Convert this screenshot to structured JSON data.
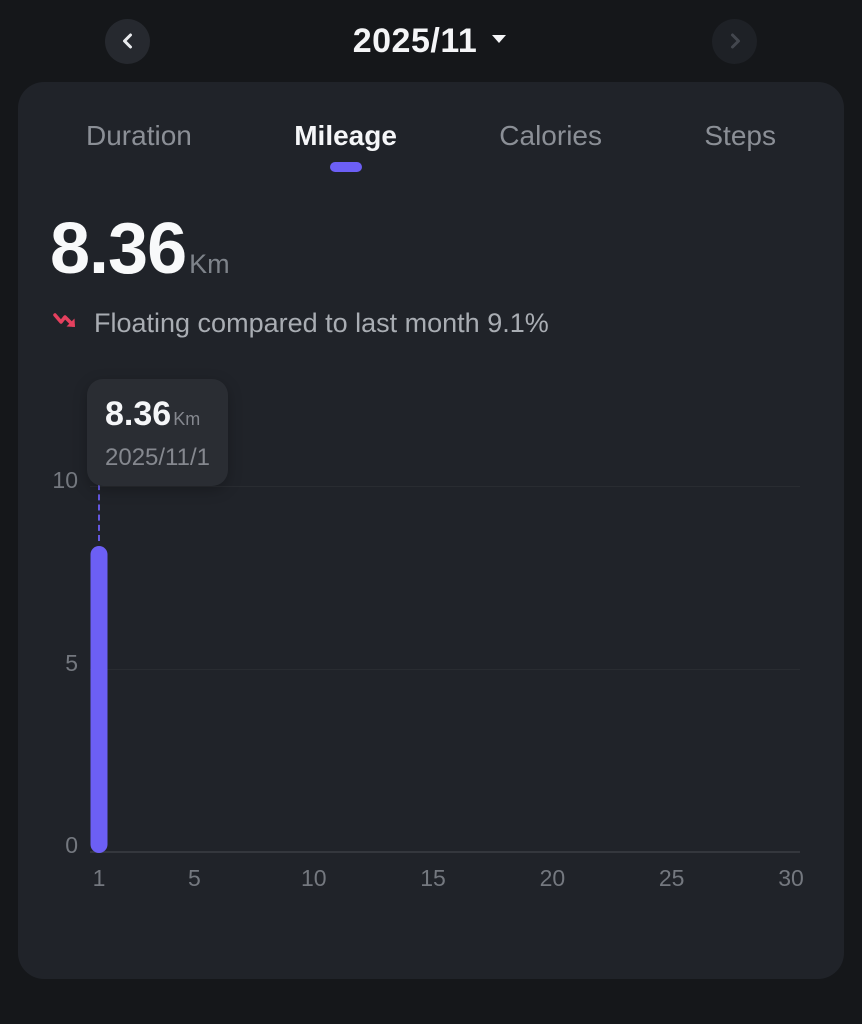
{
  "header": {
    "title": "2025/11",
    "prev_icon": "chevron-left-icon",
    "next_icon": "chevron-right-icon",
    "dropdown_icon": "caret-down-icon"
  },
  "tabs": [
    {
      "label": "Duration",
      "active": false
    },
    {
      "label": "Mileage",
      "active": true
    },
    {
      "label": "Calories",
      "active": false
    },
    {
      "label": "Steps",
      "active": false
    }
  ],
  "summary": {
    "value": "8.36",
    "unit": "Km",
    "trend_icon": "trend-down-icon",
    "trend_text": "Floating compared to last month 9.1%"
  },
  "tooltip": {
    "value": "8.36",
    "unit": "Km",
    "date": "2025/11/1"
  },
  "colors": {
    "accent": "#6c5ff5",
    "trend_red": "#e5405e",
    "page_bg": "#15171a",
    "card_bg": "#202329"
  },
  "chart_data": {
    "type": "bar",
    "title": "",
    "xlabel": "",
    "ylabel": "",
    "x": [
      1
    ],
    "values": [
      8.36
    ],
    "xlim": [
      1,
      30
    ],
    "ylim": [
      0,
      10
    ],
    "yticks": [
      0,
      5,
      10
    ],
    "xticks": [
      1,
      5,
      10,
      15,
      20,
      25,
      30
    ],
    "grid": true,
    "legend": false,
    "bar_color": "#6c5ff5"
  }
}
